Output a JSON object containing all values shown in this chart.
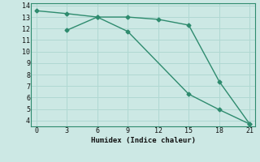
{
  "line1_x": [
    0,
    3,
    6,
    9,
    12,
    15,
    18,
    21
  ],
  "line1_y": [
    13.55,
    13.3,
    13.0,
    13.0,
    12.8,
    12.3,
    7.4,
    3.7
  ],
  "line2_x": [
    3,
    6,
    9,
    15,
    18,
    21
  ],
  "line2_y": [
    11.85,
    13.0,
    11.75,
    6.3,
    4.95,
    3.7
  ],
  "line_color": "#2e8b6e",
  "bg_color": "#cce8e4",
  "grid_color": "#b0d8d2",
  "xlabel": "Humidex (Indice chaleur)",
  "xlim": [
    -0.5,
    21.5
  ],
  "ylim": [
    3.5,
    14.2
  ],
  "xticks": [
    0,
    3,
    6,
    9,
    12,
    15,
    18,
    21
  ],
  "yticks": [
    4,
    5,
    6,
    7,
    8,
    9,
    10,
    11,
    12,
    13,
    14
  ],
  "marker": "D",
  "markersize": 2.5,
  "linewidth": 1.0
}
